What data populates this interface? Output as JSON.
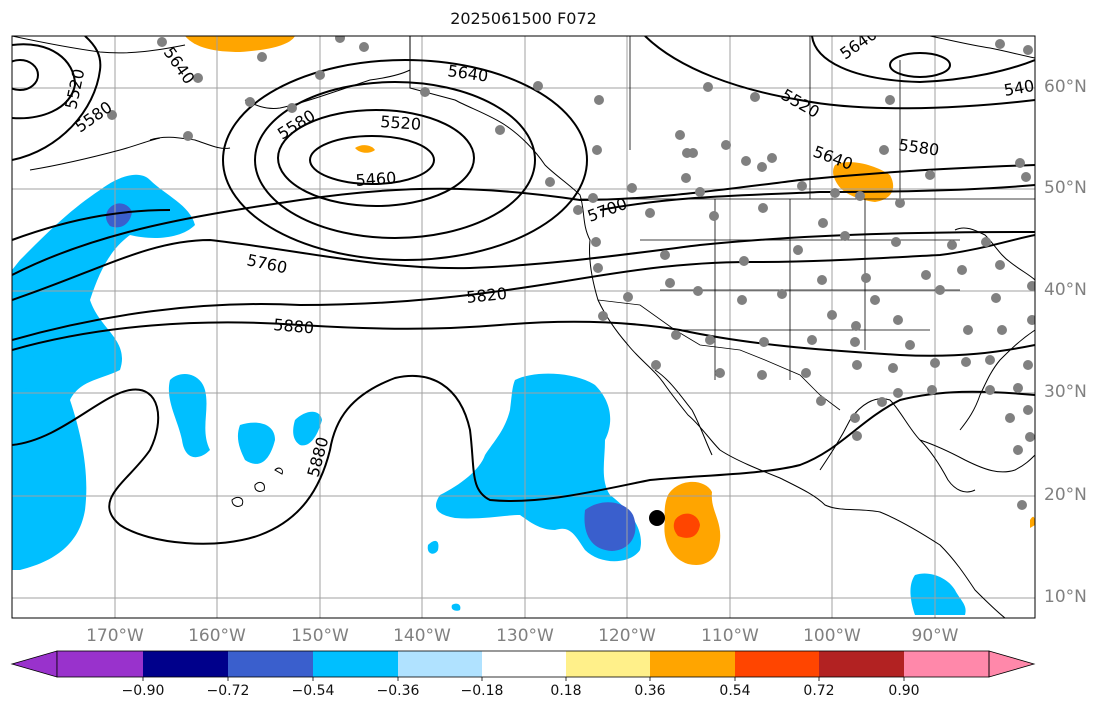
{
  "map": {
    "title": "2025061500 F072",
    "lon_labels": [
      "170°W",
      "160°W",
      "150°W",
      "140°W",
      "130°W",
      "120°W",
      "110°W",
      "100°W",
      "90°W"
    ],
    "lat_labels": [
      "60°N",
      "50°N",
      "40°N",
      "30°N",
      "20°N",
      "10°N"
    ],
    "contour_labels": [
      "5520",
      "5580",
      "5640",
      "5580",
      "5520",
      "5460",
      "5640",
      "5640",
      "5520",
      "5640",
      "5580",
      "5700",
      "5760",
      "5820",
      "5880",
      "5880",
      "540"
    ],
    "marker": {
      "type": "black-dot",
      "lon": -117.3,
      "lat": 17.8
    },
    "station_dots": "gray",
    "colors": {
      "contour": "#000000",
      "grid": "#a0a0a0",
      "coast": "#000000",
      "station": "#808080"
    }
  },
  "colorbar": {
    "tick_labels": [
      "−0.90",
      "−0.72",
      "−0.54",
      "−0.36",
      "−0.18",
      "0.18",
      "0.36",
      "0.54",
      "0.72",
      "0.90"
    ],
    "colors": [
      "#9932cc",
      "#00008b",
      "#3a5fcd",
      "#00bfff",
      "#b0e2ff",
      "#ffffff",
      "#fff08a",
      "#ffa500",
      "#ff4500",
      "#b22222",
      "#ff88aa"
    ]
  }
}
